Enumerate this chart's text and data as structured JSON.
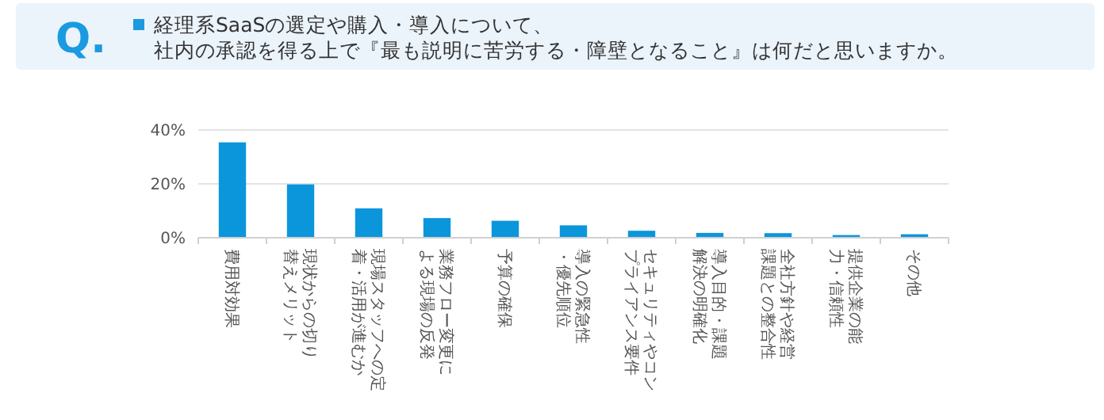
{
  "chart_data": {
    "type": "bar",
    "title": "経理系SaaSの選定や購入・導入について、社内の承認を得る上で『最も説明に苦労する・障壁となること』は何だと思いますか。",
    "annotations": [
      "Q."
    ],
    "categories": [
      "費用対効果",
      "現状からの切り替えメリット",
      "現場スタッフへの定着・活用が進むか",
      "業務フロー変更による現場の反発",
      "予算の確保",
      "導入の緊急性・優先順位",
      "セキュリティやコンプライアンス要件",
      "導入目的・課題解決の明確化",
      "全社方針や経営課題との整合性",
      "提供企業の能力・信頼性",
      "その他"
    ],
    "values": [
      35.4,
      19.8,
      10.9,
      7.3,
      6.3,
      4.6,
      2.6,
      1.8,
      1.7,
      1.0,
      1.3
    ],
    "color": "#0b96dc",
    "ylim": [
      0,
      40
    ],
    "yticks": [
      {
        "value": 0,
        "label": "0%"
      },
      {
        "value": 20,
        "label": "20%"
      },
      {
        "value": 40,
        "label": "40%"
      }
    ],
    "grid": "y"
  }
}
